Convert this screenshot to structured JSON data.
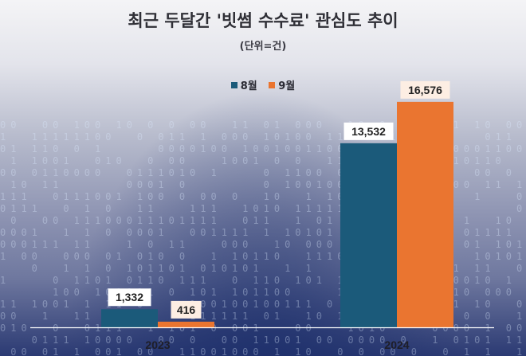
{
  "chart_data": {
    "type": "bar",
    "title": "최근 두달간 '빗썸 수수료' 관심도 추이",
    "subtitle": "(단위=건)",
    "xlabel": "",
    "ylabel": "",
    "categories": [
      "2023",
      "2024"
    ],
    "series": [
      {
        "name": "8월",
        "color": "#1b5a7a",
        "values": [
          1332,
          13532
        ],
        "labels": [
          "1,332",
          "13,532"
        ]
      },
      {
        "name": "9월",
        "color": "#ea7530",
        "values": [
          416,
          16576
        ],
        "labels": [
          "416",
          "16,576"
        ]
      }
    ],
    "ylim": [
      0,
      18500
    ],
    "grid": false,
    "legend_position": "top-center"
  }
}
